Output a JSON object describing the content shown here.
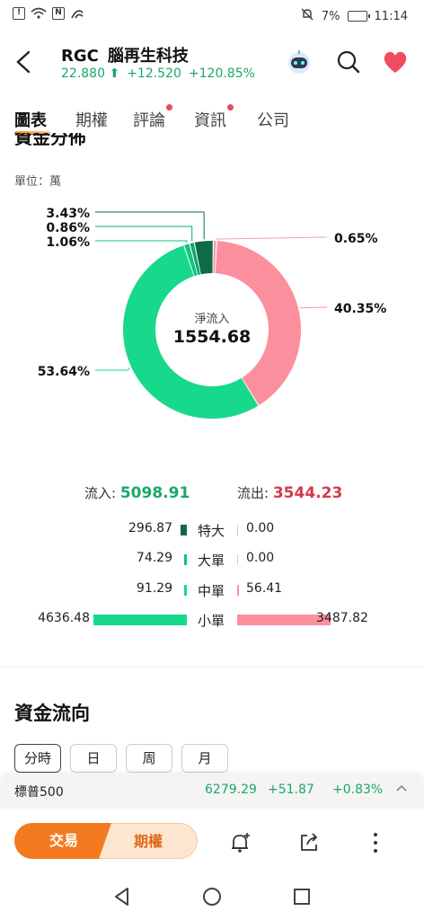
{
  "status": {
    "time": "11:14",
    "battery": "7%"
  },
  "header": {
    "ticker": "RGC",
    "name": "腦再生科技",
    "price": "22.880",
    "change": "+12.520",
    "change_pct": "+120.85%"
  },
  "tabs": [
    {
      "label": "圖表",
      "active": true,
      "dot": false
    },
    {
      "label": "期權",
      "active": false,
      "dot": false
    },
    {
      "label": "評論",
      "active": false,
      "dot": true
    },
    {
      "label": "資訊",
      "active": false,
      "dot": true
    },
    {
      "label": "公司",
      "active": false,
      "dot": false
    }
  ],
  "capital_distribution": {
    "title": "資金分佈",
    "unit_label": "單位：萬"
  },
  "chart_data": {
    "type": "pie",
    "center_label": "淨流入",
    "center_value": "1554.68",
    "slices": [
      {
        "label": "0.65%",
        "value": 0.65,
        "color": "#f6a2ae"
      },
      {
        "label": "40.35%",
        "value": 40.35,
        "color": "#fc8f9e"
      },
      {
        "label": "53.64%",
        "value": 53.64,
        "color": "#18d88c"
      },
      {
        "label": "1.06%",
        "value": 1.06,
        "color": "#12c47c"
      },
      {
        "label": "0.86%",
        "value": 0.86,
        "color": "#0fa86a"
      },
      {
        "label": "3.43%",
        "value": 3.43,
        "color": "#0d6b47"
      }
    ],
    "colors": {
      "inflow_large": "#0d6b47",
      "inflow_small": "#18d88c",
      "outflow_small": "#fc8f9e"
    }
  },
  "flows": {
    "in_label": "流入:",
    "in_value": "5098.91",
    "out_label": "流出:",
    "out_value": "3544.23",
    "rows": [
      {
        "in": "296.87",
        "category": "特大",
        "out": "0.00",
        "in_frac": 0.064,
        "out_frac": 0.0
      },
      {
        "in": "74.29",
        "category": "大單",
        "out": "0.00",
        "in_frac": 0.016,
        "out_frac": 0.0
      },
      {
        "in": "91.29",
        "category": "中單",
        "out": "56.41",
        "in_frac": 0.02,
        "out_frac": 0.016
      },
      {
        "in": "4636.48",
        "category": "小單",
        "out": "3487.82",
        "in_frac": 1.0,
        "out_frac": 1.0
      }
    ]
  },
  "fund_flow": {
    "title": "資金流向",
    "periods": [
      "分時",
      "日",
      "周",
      "月"
    ]
  },
  "index_ticker": {
    "name": "標普500",
    "price": "6279.29",
    "change": "+51.87",
    "change_pct": "+0.83%"
  },
  "bottom": {
    "trade": "交易",
    "options": "期權"
  }
}
